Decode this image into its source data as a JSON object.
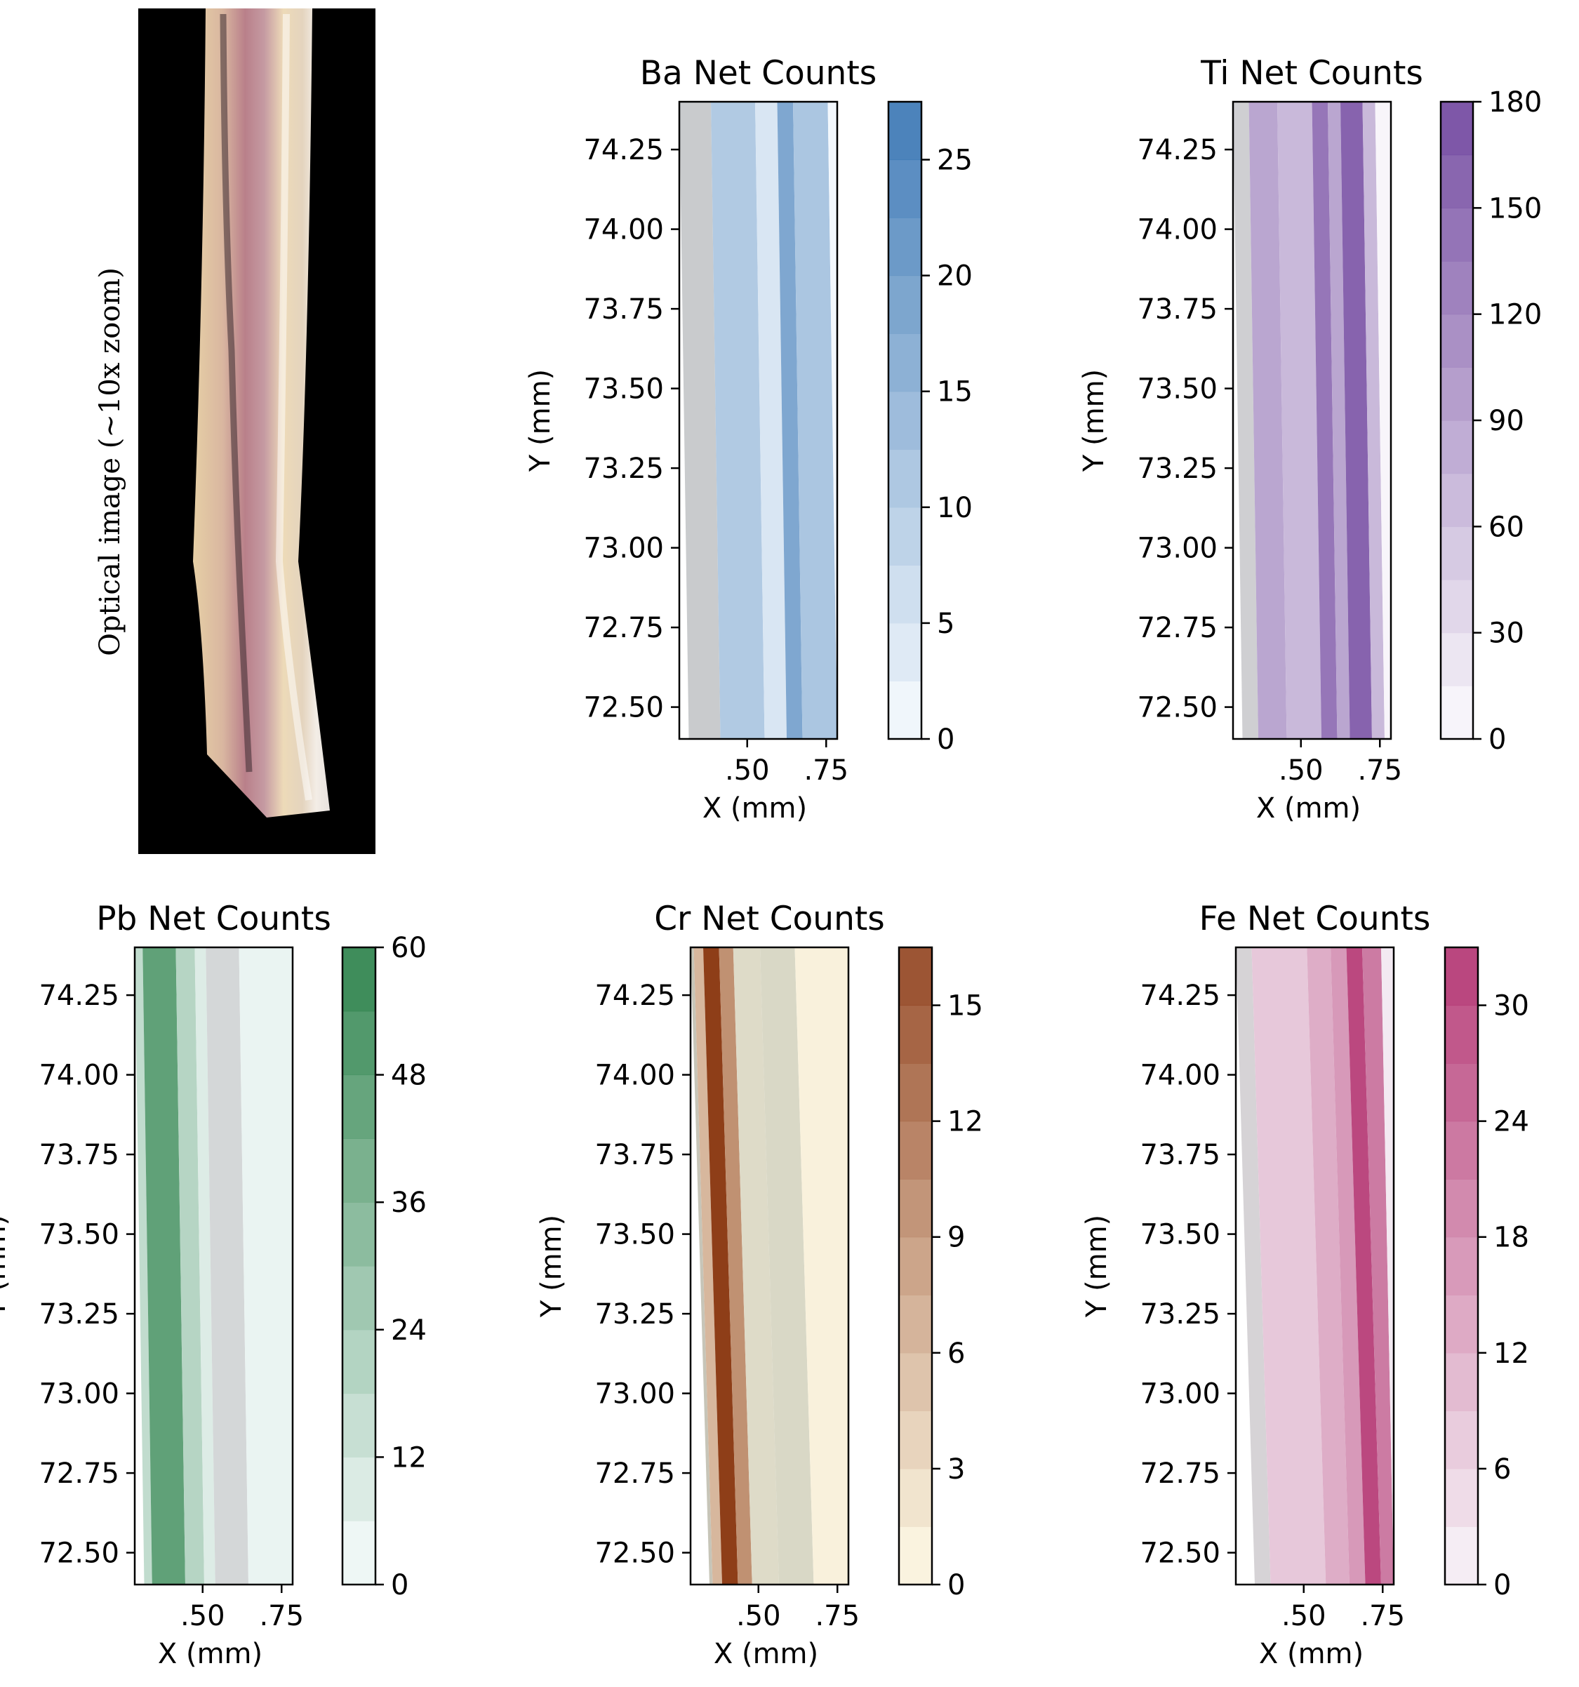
{
  "optical": {
    "label": "Optical image (~10x zoom)"
  },
  "chart_data": [
    {
      "type": "heatmap",
      "title": "Ba Net Counts",
      "xlabel": "X (mm)",
      "ylabel": "Y (mm)",
      "x_ticks": [
        ".50",
        ".75"
      ],
      "y_ticks": [
        "74.25",
        "74.00",
        "73.75",
        "73.50",
        "73.25",
        "73.00",
        "72.75",
        "72.50"
      ],
      "ylim": [
        72.4,
        74.4
      ],
      "colorbar": {
        "min": 0,
        "max": 27.5,
        "ticks": [
          0,
          5,
          10,
          15,
          20,
          25
        ],
        "levels": 11
      },
      "colormap": {
        "low": "#f7fbff",
        "high": "#2f6fb0"
      }
    },
    {
      "type": "heatmap",
      "title": "Ti Net Counts",
      "xlabel": "X (mm)",
      "ylabel": "Y (mm)",
      "x_ticks": [
        ".50",
        ".75"
      ],
      "y_ticks": [
        "74.25",
        "74.00",
        "73.75",
        "73.50",
        "73.25",
        "73.00",
        "72.75",
        "72.50"
      ],
      "ylim": [
        72.4,
        74.4
      ],
      "colorbar": {
        "min": 0,
        "max": 180,
        "ticks": [
          0,
          30,
          60,
          90,
          120,
          150,
          180
        ],
        "levels": 12
      },
      "colormap": {
        "low": "#fcfbfd",
        "high": "#6a3d9a"
      }
    },
    {
      "type": "heatmap",
      "title": "Pb Net Counts",
      "xlabel": "X (mm)",
      "ylabel": "Y (mm)",
      "x_ticks": [
        ".50",
        ".75"
      ],
      "y_ticks": [
        "74.25",
        "74.00",
        "73.75",
        "73.50",
        "73.25",
        "73.00",
        "72.75",
        "72.50"
      ],
      "ylim": [
        72.4,
        74.4
      ],
      "colorbar": {
        "min": 0,
        "max": 60,
        "ticks": [
          0,
          12,
          24,
          36,
          48,
          60
        ],
        "levels": 10
      },
      "colormap": {
        "low": "#f7fcfd",
        "high": "#1f7a3f"
      }
    },
    {
      "type": "heatmap",
      "title": "Cr Net Counts",
      "xlabel": "X (mm)",
      "ylabel": "Y (mm)",
      "x_ticks": [
        ".50",
        ".75"
      ],
      "y_ticks": [
        "74.25",
        "74.00",
        "73.75",
        "73.50",
        "73.25",
        "73.00",
        "72.75",
        "72.50"
      ],
      "ylim": [
        72.4,
        74.4
      ],
      "colorbar": {
        "min": 0,
        "max": 16.5,
        "ticks": [
          0,
          3,
          6,
          9,
          12,
          15
        ],
        "levels": 11
      },
      "colormap": {
        "low": "#fffbe6",
        "high": "#8c3a14"
      }
    },
    {
      "type": "heatmap",
      "title": "Fe Net Counts",
      "xlabel": "X (mm)",
      "ylabel": "Y (mm)",
      "x_ticks": [
        ".50",
        ".75"
      ],
      "y_ticks": [
        "74.25",
        "74.00",
        "73.75",
        "73.50",
        "73.25",
        "73.00",
        "72.75",
        "72.50"
      ],
      "ylim": [
        72.4,
        74.4
      ],
      "colorbar": {
        "min": 0,
        "max": 33,
        "ticks": [
          0,
          6,
          12,
          18,
          24,
          30
        ],
        "levels": 11
      },
      "colormap": {
        "low": "#f7f4f9",
        "high": "#b02a6a"
      }
    }
  ]
}
